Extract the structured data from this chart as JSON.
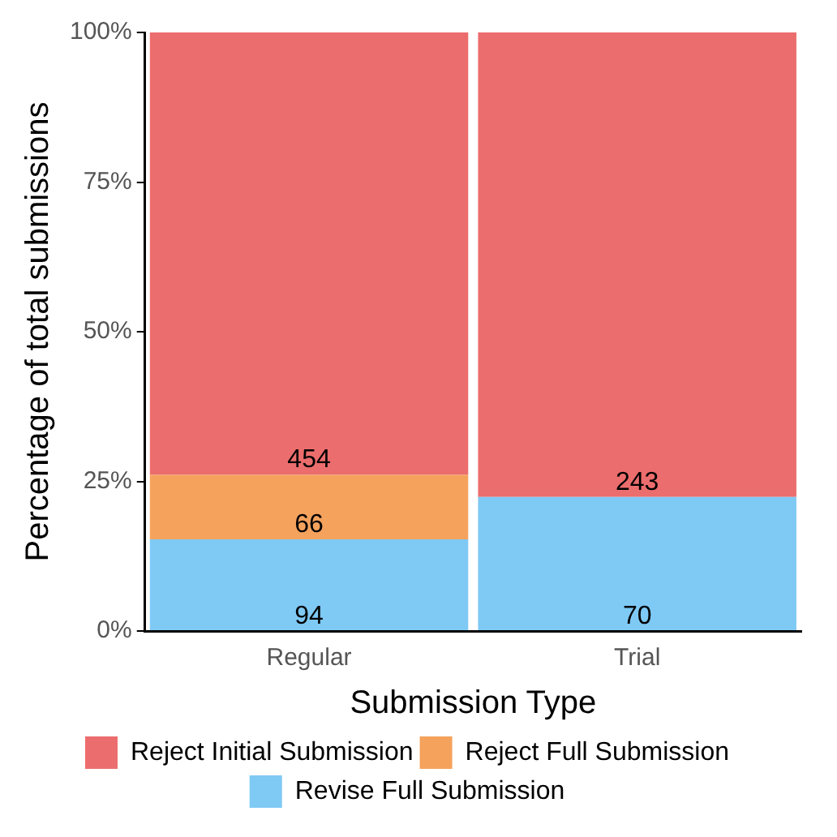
{
  "chart_data": {
    "type": "bar",
    "stacked": true,
    "xlabel": "Submission Type",
    "ylabel": "Percentage of total submissions",
    "categories": [
      "Regular",
      "Trial"
    ],
    "ylim": [
      0,
      100
    ],
    "yticks": [
      {
        "value": 0,
        "label": "0%"
      },
      {
        "value": 25,
        "label": "25%"
      },
      {
        "value": 50,
        "label": "50%"
      },
      {
        "value": 75,
        "label": "75%"
      },
      {
        "value": 100,
        "label": "100%"
      }
    ],
    "series": [
      {
        "name": "Revise Full Submission",
        "color": "#7fc9f5",
        "values": [
          15.3,
          22.4
        ]
      },
      {
        "name": "Reject Full Submission",
        "color": "#f5a25d",
        "values": [
          10.8,
          0
        ]
      },
      {
        "name": "Reject Initial Submission",
        "color": "#ec6d6d",
        "values": [
          73.9,
          77.6
        ]
      }
    ],
    "annotations": [
      {
        "text": "94",
        "x": "Regular",
        "y": 0
      },
      {
        "text": "66",
        "x": "Regular",
        "y": 15.3
      },
      {
        "text": "454",
        "x": "Regular",
        "y": 26.1
      },
      {
        "text": "70",
        "x": "Trial",
        "y": 0
      },
      {
        "text": "243",
        "x": "Trial",
        "y": 22.4
      }
    ],
    "grid": false,
    "legend": "bottom"
  }
}
